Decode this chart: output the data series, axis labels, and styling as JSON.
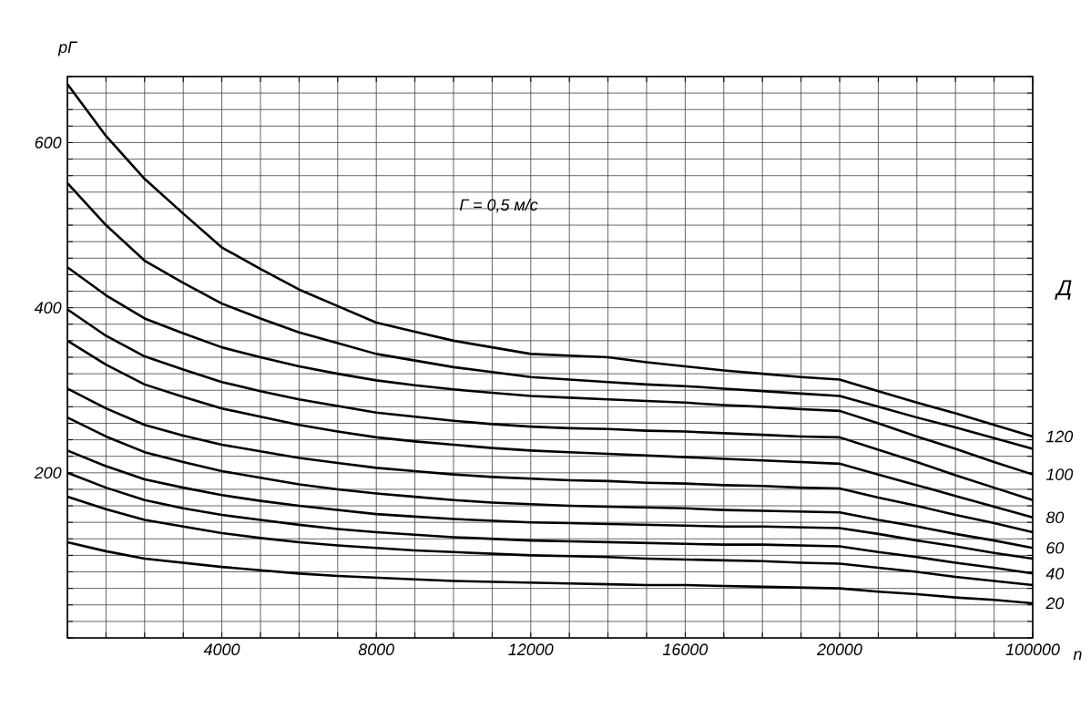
{
  "chart_data": {
    "type": "line",
    "xlabel": "n",
    "ylabel": "рГ",
    "legend_title": "Д",
    "annotations": [
      "Г = 0,5 м/с"
    ],
    "categories": [
      null,
      null,
      null,
      null,
      "4000",
      null,
      null,
      null,
      "8000",
      null,
      null,
      null,
      "12000",
      null,
      null,
      null,
      "16000",
      null,
      null,
      null,
      "20000",
      null,
      null,
      null,
      null,
      "100000"
    ],
    "ylim": [
      0,
      680
    ],
    "yticks": [
      {
        "value": 0,
        "label": null
      },
      {
        "value": 20,
        "label": null
      },
      {
        "value": 40,
        "label": null
      },
      {
        "value": 60,
        "label": null
      },
      {
        "value": 80,
        "label": null
      },
      {
        "value": 100,
        "label": null
      },
      {
        "value": 120,
        "label": null
      },
      {
        "value": 140,
        "label": null
      },
      {
        "value": 160,
        "label": null
      },
      {
        "value": 180,
        "label": null
      },
      200,
      {
        "value": 220,
        "label": null
      },
      {
        "value": 240,
        "label": null
      },
      {
        "value": 260,
        "label": null
      },
      {
        "value": 280,
        "label": null
      },
      {
        "value": 300,
        "label": null
      },
      {
        "value": 320,
        "label": null
      },
      {
        "value": 340,
        "label": null
      },
      {
        "value": 360,
        "label": null
      },
      {
        "value": 380,
        "label": null
      },
      400,
      {
        "value": 420,
        "label": null
      },
      {
        "value": 440,
        "label": null
      },
      {
        "value": 460,
        "label": null
      },
      {
        "value": 480,
        "label": null
      },
      {
        "value": 500,
        "label": null
      },
      {
        "value": 520,
        "label": null
      },
      {
        "value": 540,
        "label": null
      },
      {
        "value": 560,
        "label": null
      },
      {
        "value": 580,
        "label": null
      },
      600,
      {
        "value": 620,
        "label": null
      },
      {
        "value": 640,
        "label": null
      },
      {
        "value": 660,
        "label": null
      },
      {
        "value": 680,
        "label": null
      }
    ],
    "grid": true,
    "legend": "right",
    "marker": "none",
    "line_style": "solid",
    "series": [
      {
        "name": "120",
        "color": "#000000",
        "values": [
          671,
          608,
          556,
          514,
          473,
          447,
          422,
          402,
          382,
          371,
          360,
          352,
          344,
          342,
          340,
          334,
          329,
          324,
          320,
          316,
          313,
          299,
          285,
          272,
          258,
          244
        ]
      },
      {
        "color": "#000000",
        "values": [
          551,
          500,
          457,
          430,
          405,
          387,
          370,
          357,
          344,
          336,
          328,
          322,
          316,
          313,
          310,
          307,
          305,
          302,
          299,
          296,
          293,
          280,
          267,
          255,
          242,
          229
        ]
      },
      {
        "name": "100",
        "color": "#000000",
        "values": [
          449,
          415,
          387,
          369,
          352,
          340,
          329,
          320,
          312,
          306,
          301,
          297,
          293,
          291,
          289,
          287,
          285,
          282,
          280,
          277,
          275,
          260,
          244,
          229,
          213,
          198
        ]
      },
      {
        "color": "#000000",
        "values": [
          398,
          366,
          341,
          325,
          310,
          299,
          289,
          281,
          273,
          268,
          263,
          259,
          256,
          254,
          253,
          251,
          250,
          248,
          246,
          244,
          243,
          228,
          213,
          197,
          182,
          167
        ]
      },
      {
        "name": "80",
        "color": "#000000",
        "values": [
          360,
          331,
          307,
          292,
          278,
          268,
          258,
          250,
          243,
          238,
          234,
          230,
          227,
          225,
          223,
          221,
          219,
          217,
          215,
          213,
          211,
          198,
          185,
          172,
          159,
          146
        ]
      },
      {
        "color": "#000000",
        "values": [
          302,
          278,
          258,
          245,
          234,
          226,
          218,
          212,
          206,
          202,
          198,
          195,
          193,
          191,
          190,
          188,
          187,
          185,
          184,
          182,
          181,
          170,
          160,
          149,
          139,
          128
        ]
      },
      {
        "name": "60",
        "color": "#000000",
        "values": [
          267,
          244,
          225,
          213,
          202,
          194,
          186,
          180,
          175,
          171,
          167,
          164,
          162,
          160,
          159,
          158,
          157,
          155,
          154,
          153,
          152,
          143,
          135,
          126,
          118,
          109
        ]
      },
      {
        "color": "#000000",
        "values": [
          227,
          208,
          192,
          182,
          173,
          166,
          160,
          155,
          150,
          147,
          144,
          142,
          140,
          139,
          138,
          137,
          136,
          135,
          135,
          134,
          133,
          126,
          118,
          111,
          103,
          96
        ]
      },
      {
        "name": "40",
        "color": "#000000",
        "values": [
          200,
          182,
          167,
          157,
          149,
          143,
          137,
          132,
          128,
          125,
          122,
          120,
          118,
          117,
          116,
          115,
          114,
          113,
          113,
          112,
          111,
          104,
          98,
          91,
          85,
          78
        ]
      },
      {
        "color": "#000000",
        "values": [
          171,
          156,
          143,
          135,
          127,
          121,
          116,
          112,
          109,
          106,
          104,
          102,
          100,
          99,
          98,
          96,
          95,
          94,
          93,
          91,
          90,
          85,
          80,
          74,
          69,
          64
        ]
      },
      {
        "name": "20",
        "color": "#000000",
        "values": [
          116,
          105,
          96,
          91,
          86,
          82,
          78,
          75,
          73,
          71,
          69,
          68,
          67,
          66,
          65,
          64,
          64,
          63,
          62,
          61,
          60,
          56,
          53,
          49,
          46,
          42
        ]
      }
    ]
  }
}
